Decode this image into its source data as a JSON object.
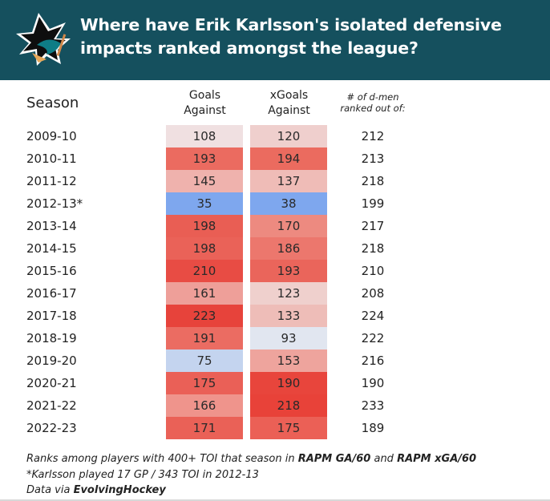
{
  "header": {
    "title": "Where have Erik Karlsson's isolated defensive impacts ranked amongst the league?",
    "logo": "san-jose-sharks-logo",
    "background": "#15505e"
  },
  "chart_data": {
    "type": "table",
    "title": "Where have Erik Karlsson's isolated defensive impacts ranked amongst the league?",
    "columns": [
      "Season",
      "Goals Against",
      "xGoals Against",
      "# of d-men ranked out of:"
    ],
    "column_labels": {
      "season": "Season",
      "ga_line1": "Goals",
      "ga_line2": "Against",
      "xga_line1": "xGoals",
      "xga_line2": "Against",
      "n_line1": "# of d-men",
      "n_line2": "ranked out of:"
    },
    "rows": [
      {
        "season": "2009-10",
        "ga": "108",
        "xga": "120",
        "n": "212",
        "ga_color": "#f0e0e1",
        "xga_color": "#efcfcd"
      },
      {
        "season": "2010-11",
        "ga": "193",
        "xga": "194",
        "n": "213",
        "ga_color": "#eb6b60",
        "xga_color": "#eb6b5f"
      },
      {
        "season": "2011-12",
        "ga": "145",
        "xga": "137",
        "n": "218",
        "ga_color": "#efb2ad",
        "xga_color": "#efbcb7"
      },
      {
        "season": "2012-13*",
        "ga": "35",
        "xga": "38",
        "n": "199",
        "ga_color": "#7ea7ee",
        "xga_color": "#7ea7ee"
      },
      {
        "season": "2013-14",
        "ga": "198",
        "xga": "170",
        "n": "217",
        "ga_color": "#e95e54",
        "xga_color": "#ed8a80"
      },
      {
        "season": "2014-15",
        "ga": "198",
        "xga": "186",
        "n": "218",
        "ga_color": "#ea6258",
        "xga_color": "#ec776d"
      },
      {
        "season": "2015-16",
        "ga": "210",
        "xga": "193",
        "n": "210",
        "ga_color": "#e84c44",
        "xga_color": "#ea655b"
      },
      {
        "season": "2016-17",
        "ga": "161",
        "xga": "123",
        "n": "208",
        "ga_color": "#ee9f99",
        "xga_color": "#efd0cd"
      },
      {
        "season": "2017-18",
        "ga": "223",
        "xga": "133",
        "n": "224",
        "ga_color": "#e7433b",
        "xga_color": "#eebdb8"
      },
      {
        "season": "2018-19",
        "ga": "191",
        "xga": "93",
        "n": "222",
        "ga_color": "#eb6c62",
        "xga_color": "#e1e6f0"
      },
      {
        "season": "2019-20",
        "ga": "75",
        "xga": "153",
        "n": "216",
        "ga_color": "#c4d4ef",
        "xga_color": "#eea49d"
      },
      {
        "season": "2020-21",
        "ga": "175",
        "xga": "190",
        "n": "190",
        "ga_color": "#ea6057",
        "xga_color": "#e8453c"
      },
      {
        "season": "2021-22",
        "ga": "166",
        "xga": "218",
        "n": "233",
        "ga_color": "#ef948c",
        "xga_color": "#e84239"
      },
      {
        "season": "2022-23",
        "ga": "171",
        "xga": "175",
        "n": "189",
        "ga_color": "#ea6157",
        "xga_color": "#eb6056"
      }
    ]
  },
  "notes": {
    "line1_a": "Ranks among players with 400+ TOI that season in ",
    "line1_b": "RAPM GA/60",
    "line1_c": " and ",
    "line1_d": "RAPM xGA/60",
    "line2": "*Karlsson played 17 GP / 343 TOI in 2012-13",
    "line3_a": "Data via ",
    "line3_b": "EvolvingHockey"
  }
}
